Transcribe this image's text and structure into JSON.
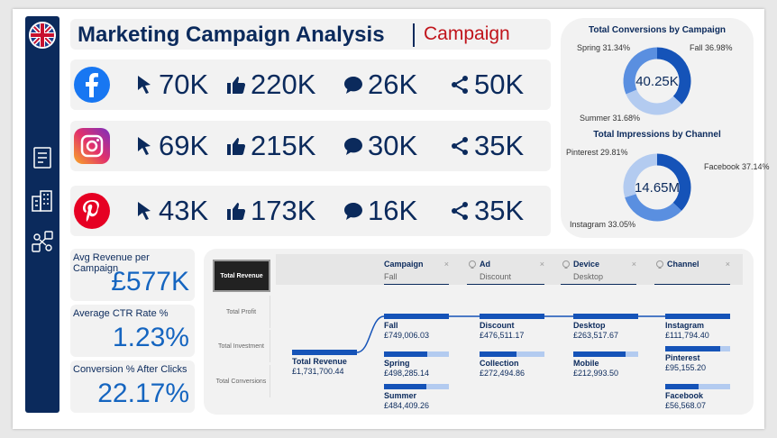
{
  "header": {
    "title": "Marketing Campaign Analysis",
    "subtitle": "Campaign"
  },
  "social": [
    {
      "platform": "facebook",
      "clicks": "70K",
      "likes": "220K",
      "comments": "26K",
      "shares": "50K"
    },
    {
      "platform": "instagram",
      "clicks": "69K",
      "likes": "215K",
      "comments": "30K",
      "shares": "35K"
    },
    {
      "platform": "pinterest",
      "clicks": "43K",
      "likes": "173K",
      "comments": "16K",
      "shares": "35K"
    }
  ],
  "donut1": {
    "title": "Total Conversions by Campaign",
    "center": "40.25K",
    "slices": [
      {
        "label": "Fall 36.98%",
        "value": 36.98,
        "color": "#1553b8"
      },
      {
        "label": "Summer 31.68%",
        "value": 31.68,
        "color": "#b3cbf0"
      },
      {
        "label": "Spring 31.34%",
        "value": 31.34,
        "color": "#5a8fe0"
      }
    ]
  },
  "donut2": {
    "title": "Total Impressions by Channel",
    "center": "14.65M",
    "slices": [
      {
        "label": "Facebook 37.14%",
        "value": 37.14,
        "color": "#1553b8"
      },
      {
        "label": "Instagram 33.05%",
        "value": 33.05,
        "color": "#5a8fe0"
      },
      {
        "label": "Pinterest 29.81%",
        "value": 29.81,
        "color": "#b3cbf0"
      }
    ]
  },
  "kpis": [
    {
      "label": "Avg Revenue per Campaign",
      "value": "£577K"
    },
    {
      "label": "Average CTR Rate %",
      "value": "1.23%"
    },
    {
      "label": "Conversion % After Clicks",
      "value": "22.17%"
    }
  ],
  "tree": {
    "tabs": [
      "Total Revenue",
      "Total Profit",
      "Total Investment",
      "Total Conversions"
    ],
    "headers": [
      {
        "h": "Campaign",
        "v": "Fall"
      },
      {
        "h": "Ad",
        "v": "Discount"
      },
      {
        "h": "Device",
        "v": "Desktop"
      },
      {
        "h": "Channel",
        "v": ""
      }
    ],
    "x_mark": "×",
    "root": {
      "name": "Total Revenue",
      "value": "£1,731,700.44"
    },
    "campaign": [
      {
        "name": "Fall",
        "value": "£749,006.03",
        "fill": 1.0
      },
      {
        "name": "Spring",
        "value": "£498,285.14",
        "fill": 0.67
      },
      {
        "name": "Summer",
        "value": "£484,409.26",
        "fill": 0.65
      }
    ],
    "ad": [
      {
        "name": "Discount",
        "value": "£476,511.17",
        "fill": 1.0
      },
      {
        "name": "Collection",
        "value": "£272,494.86",
        "fill": 0.57
      }
    ],
    "device": [
      {
        "name": "Desktop",
        "value": "£263,517.67",
        "fill": 1.0
      },
      {
        "name": "Mobile",
        "value": "£212,993.50",
        "fill": 0.81
      }
    ],
    "channel": [
      {
        "name": "Instagram",
        "value": "£111,794.40",
        "fill": 1.0
      },
      {
        "name": "Pinterest",
        "value": "£95,155.20",
        "fill": 0.85
      },
      {
        "name": "Facebook",
        "value": "£56,568.07",
        "fill": 0.51
      }
    ]
  }
}
